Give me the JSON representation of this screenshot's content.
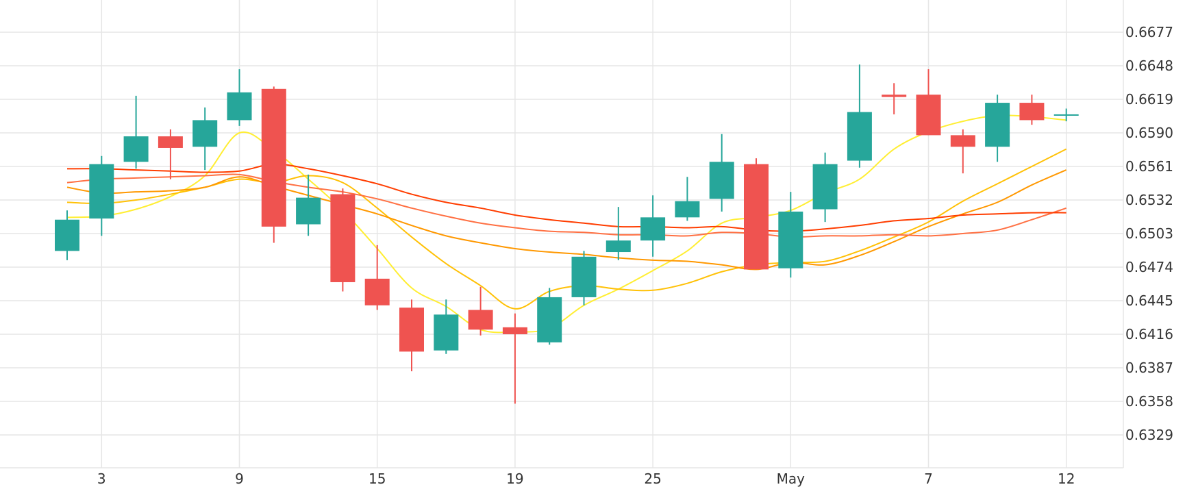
{
  "chart_data": {
    "type": "candlestick",
    "x_tick_labels": [
      "3",
      "9",
      "15",
      "19",
      "25",
      "May",
      "7",
      "12"
    ],
    "y_tick_labels": [
      "0.6677",
      "0.6648",
      "0.6619",
      "0.6590",
      "0.6561",
      "0.6532",
      "0.6503",
      "0.6474",
      "0.6445",
      "0.6416",
      "0.6387",
      "0.6358",
      "0.6329"
    ],
    "ylim": [
      0.63,
      0.6706
    ],
    "grid": true,
    "colors": {
      "up": "#26a69a",
      "down": "#ef5350",
      "ma_5": "#ffee33",
      "ma_10": "#ffc107",
      "ma_20": "#ff9800",
      "ma_30": "#ff7043",
      "ma_60": "#ff3d00",
      "grid": "#e6e6e6",
      "text": "#333333"
    },
    "candles": [
      {
        "x": 0,
        "open": 0.6488,
        "high": 0.6523,
        "low": 0.648,
        "close": 0.6515
      },
      {
        "x": 1,
        "open": 0.6516,
        "high": 0.657,
        "low": 0.6501,
        "close": 0.6563
      },
      {
        "x": 2,
        "open": 0.6565,
        "high": 0.6622,
        "low": 0.6559,
        "close": 0.6587
      },
      {
        "x": 3,
        "open": 0.6587,
        "high": 0.6593,
        "low": 0.655,
        "close": 0.6577
      },
      {
        "x": 4,
        "open": 0.6578,
        "high": 0.6612,
        "low": 0.6558,
        "close": 0.6601
      },
      {
        "x": 5,
        "open": 0.6601,
        "high": 0.6645,
        "low": 0.6596,
        "close": 0.6625
      },
      {
        "x": 6,
        "open": 0.6628,
        "high": 0.663,
        "low": 0.6495,
        "close": 0.6509
      },
      {
        "x": 7,
        "open": 0.6511,
        "high": 0.6554,
        "low": 0.6501,
        "close": 0.6534
      },
      {
        "x": 8,
        "open": 0.6537,
        "high": 0.6542,
        "low": 0.6453,
        "close": 0.6461
      },
      {
        "x": 9,
        "open": 0.6464,
        "high": 0.6493,
        "low": 0.6437,
        "close": 0.6441
      },
      {
        "x": 10,
        "open": 0.6439,
        "high": 0.6446,
        "low": 0.6384,
        "close": 0.6401
      },
      {
        "x": 11,
        "open": 0.6402,
        "high": 0.6446,
        "low": 0.6399,
        "close": 0.6433
      },
      {
        "x": 12,
        "open": 0.6437,
        "high": 0.6457,
        "low": 0.6415,
        "close": 0.642
      },
      {
        "x": 13,
        "open": 0.6422,
        "high": 0.6434,
        "low": 0.6356,
        "close": 0.6416
      },
      {
        "x": 14,
        "open": 0.6409,
        "high": 0.6456,
        "low": 0.6407,
        "close": 0.6448
      },
      {
        "x": 15,
        "open": 0.6448,
        "high": 0.6488,
        "low": 0.6441,
        "close": 0.6483
      },
      {
        "x": 16,
        "open": 0.6487,
        "high": 0.6526,
        "low": 0.648,
        "close": 0.6497
      },
      {
        "x": 17,
        "open": 0.6497,
        "high": 0.6536,
        "low": 0.6483,
        "close": 0.6517
      },
      {
        "x": 18,
        "open": 0.6517,
        "high": 0.6552,
        "low": 0.6514,
        "close": 0.6531
      },
      {
        "x": 19,
        "open": 0.6533,
        "high": 0.6589,
        "low": 0.6522,
        "close": 0.6565
      },
      {
        "x": 20,
        "open": 0.6563,
        "high": 0.6568,
        "low": 0.6472,
        "close": 0.6472
      },
      {
        "x": 21,
        "open": 0.6473,
        "high": 0.6539,
        "low": 0.6465,
        "close": 0.6522
      },
      {
        "x": 22,
        "open": 0.6524,
        "high": 0.6573,
        "low": 0.6513,
        "close": 0.6563
      },
      {
        "x": 23,
        "open": 0.6566,
        "high": 0.6649,
        "low": 0.656,
        "close": 0.6608
      },
      {
        "x": 24,
        "open": 0.6623,
        "high": 0.6633,
        "low": 0.6606,
        "close": 0.6621
      },
      {
        "x": 25,
        "open": 0.6623,
        "high": 0.6645,
        "low": 0.6588,
        "close": 0.6588
      },
      {
        "x": 26,
        "open": 0.6588,
        "high": 0.6593,
        "low": 0.6555,
        "close": 0.6578
      },
      {
        "x": 27,
        "open": 0.6578,
        "high": 0.6623,
        "low": 0.6565,
        "close": 0.6616
      },
      {
        "x": 28,
        "open": 0.6616,
        "high": 0.6623,
        "low": 0.6597,
        "close": 0.6601
      },
      {
        "x": 29,
        "open": 0.6605,
        "high": 0.6611,
        "low": 0.66,
        "close": 0.6606
      }
    ],
    "ma_lines": [
      {
        "key": "ma_5",
        "values": [
          0.6517,
          0.6518,
          0.6524,
          0.6535,
          0.6553,
          0.659,
          0.6575,
          0.655,
          0.6523,
          0.649,
          0.6456,
          0.644,
          0.642,
          0.6418,
          0.6421,
          0.6441,
          0.6455,
          0.6471,
          0.6488,
          0.6512,
          0.6517,
          0.6523,
          0.6538,
          0.655,
          0.6576,
          0.6591,
          0.66,
          0.6605,
          0.6604,
          0.6601
        ]
      },
      {
        "key": "ma_10",
        "values": [
          0.653,
          0.6529,
          0.6532,
          0.6537,
          0.6543,
          0.655,
          0.6547,
          0.6553,
          0.6547,
          0.6525,
          0.65,
          0.6477,
          0.6458,
          0.6438,
          0.6453,
          0.6458,
          0.6455,
          0.6454,
          0.646,
          0.647,
          0.6476,
          0.6478,
          0.6479,
          0.6488,
          0.65,
          0.6513,
          0.6531,
          0.6546,
          0.6561,
          0.6576
        ]
      },
      {
        "key": "ma_20",
        "values": [
          0.6543,
          0.6538,
          0.6539,
          0.654,
          0.6543,
          0.6552,
          0.6544,
          0.6536,
          0.6528,
          0.652,
          0.651,
          0.6501,
          0.6495,
          0.649,
          0.6487,
          0.6485,
          0.6482,
          0.648,
          0.6479,
          0.6476,
          0.6472,
          0.6478,
          0.6476,
          0.6484,
          0.6496,
          0.6509,
          0.652,
          0.653,
          0.6545,
          0.6558
        ]
      },
      {
        "key": "ma_30",
        "values": [
          0.6547,
          0.655,
          0.6551,
          0.6552,
          0.6553,
          0.6554,
          0.6548,
          0.6543,
          0.6539,
          0.6533,
          0.6525,
          0.6518,
          0.6512,
          0.6508,
          0.6505,
          0.6504,
          0.6502,
          0.6502,
          0.6501,
          0.6504,
          0.6503,
          0.65,
          0.6501,
          0.6501,
          0.6502,
          0.6501,
          0.6503,
          0.6506,
          0.6515,
          0.6525
        ]
      },
      {
        "key": "ma_60",
        "values": [
          0.6559,
          0.6559,
          0.6558,
          0.6557,
          0.6556,
          0.6557,
          0.6563,
          0.6559,
          0.6553,
          0.6546,
          0.6537,
          0.653,
          0.6525,
          0.6519,
          0.6515,
          0.6512,
          0.6509,
          0.6509,
          0.6508,
          0.6509,
          0.6506,
          0.6505,
          0.6507,
          0.651,
          0.6514,
          0.6516,
          0.6519,
          0.652,
          0.6521,
          0.6521
        ]
      }
    ]
  }
}
